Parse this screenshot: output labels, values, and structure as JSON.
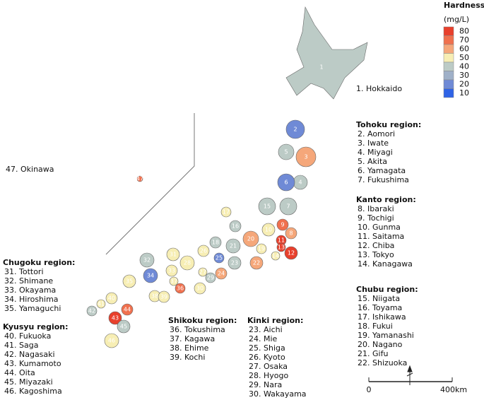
{
  "legend": {
    "title": "Hardness",
    "unit": "(mg/L)",
    "ticks": [
      80,
      70,
      60,
      50,
      40,
      30,
      20,
      10
    ],
    "colors": [
      "#e8402c",
      "#f0704e",
      "#f5a77a",
      "#f7eeb4",
      "#bccbc6",
      "#9fb0c8",
      "#6f8ad6",
      "#2f63e6"
    ]
  },
  "prefectures": [
    {
      "label": "1",
      "hardness": 40
    },
    {
      "label": "2",
      "hardness": 20
    },
    {
      "label": "3",
      "hardness": 60
    },
    {
      "label": "4",
      "hardness": 40
    },
    {
      "label": "5",
      "hardness": 40
    },
    {
      "label": "6",
      "hardness": 20
    },
    {
      "label": "7",
      "hardness": 40
    },
    {
      "label": "8",
      "hardness": 60
    },
    {
      "label": "9",
      "hardness": 70
    },
    {
      "label": "10",
      "hardness": 50
    },
    {
      "label": "11",
      "hardness": 80
    },
    {
      "label": "12",
      "hardness": 80
    },
    {
      "label": "13",
      "hardness": 80
    },
    {
      "label": "14",
      "hardness": 50
    },
    {
      "label": "15",
      "hardness": 40
    },
    {
      "label": "16",
      "hardness": 40
    },
    {
      "label": "17",
      "hardness": 50
    },
    {
      "label": "18",
      "hardness": 40
    },
    {
      "label": "19",
      "hardness": 50
    },
    {
      "label": "20",
      "hardness": 60
    },
    {
      "label": "21",
      "hardness": 40
    },
    {
      "label": "22",
      "hardness": 60
    },
    {
      "label": "23",
      "hardness": 40
    },
    {
      "label": "24",
      "hardness": 60
    },
    {
      "label": "25",
      "hardness": 20
    },
    {
      "label": "26",
      "hardness": 50
    },
    {
      "label": "27",
      "hardness": 50
    },
    {
      "label": "28",
      "hardness": 50
    },
    {
      "label": "29",
      "hardness": 40
    },
    {
      "label": "30",
      "hardness": 50
    },
    {
      "label": "31",
      "hardness": 50
    },
    {
      "label": "32",
      "hardness": 40
    },
    {
      "label": "33",
      "hardness": 50
    },
    {
      "label": "34",
      "hardness": 20
    },
    {
      "label": "35",
      "hardness": 50
    },
    {
      "label": "36",
      "hardness": 70
    },
    {
      "label": "37",
      "hardness": 50
    },
    {
      "label": "38",
      "hardness": 50
    },
    {
      "label": "39",
      "hardness": 50
    },
    {
      "label": "40",
      "hardness": 50
    },
    {
      "label": "41",
      "hardness": 50
    },
    {
      "label": "42",
      "hardness": 40
    },
    {
      "label": "43",
      "hardness": 80
    },
    {
      "label": "44",
      "hardness": 70
    },
    {
      "label": "45",
      "hardness": 40
    },
    {
      "label": "46",
      "hardness": 50
    },
    {
      "label": "47",
      "hardness": 70
    }
  ],
  "notes": {
    "hokkaido": "1. Hokkaido",
    "okinawa": "47. Okinawa"
  },
  "regions": [
    {
      "title": "Tohoku region:",
      "items": [
        "2. Aomori",
        "3. Iwate",
        "4. Miyagi",
        "5. Akita",
        "6. Yamagata",
        "7. Fukushima"
      ]
    },
    {
      "title": "Kanto region:",
      "items": [
        "8. Ibaraki",
        "9. Tochigi",
        "10. Gunma",
        "11. Saitama",
        "12. Chiba",
        "13. Tokyo",
        "14. Kanagawa"
      ]
    },
    {
      "title": "Chubu region:",
      "items": [
        "15. Niigata",
        "16. Toyama",
        "17. Ishikawa",
        "18. Fukui",
        "19. Yamanashi",
        "20. Nagano",
        "21. Gifu",
        "22. Shizuoka"
      ]
    },
    {
      "title": "Kinki region:",
      "items": [
        "23. Aichi",
        "24. Mie",
        "25. Shiga",
        "26. Kyoto",
        "27. Osaka",
        "28. Hyogo",
        "29. Nara",
        "30. Wakayama"
      ]
    },
    {
      "title": "Shikoku region:",
      "items": [
        "36. Tokushima",
        "37. Kagawa",
        "38. Ehime",
        "39. Kochi"
      ]
    },
    {
      "title": "Chugoku region:",
      "items": [
        "31. Tottori",
        "32. Shimane",
        "33. Okayama",
        "34. Hiroshima",
        "35. Yamaguchi"
      ]
    },
    {
      "title": "Kyusyu region:",
      "items": [
        "40. Fukuoka",
        "41. Saga",
        "42. Nagasaki",
        "43. Kumamoto",
        "44. Oita",
        "45. Miyazaki",
        "46. Kagoshima"
      ]
    }
  ],
  "scale": {
    "start": "0",
    "end": "400km"
  }
}
